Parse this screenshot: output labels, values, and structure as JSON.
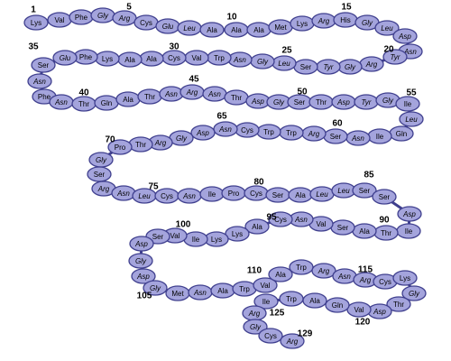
{
  "residues": [
    "Lys",
    "Val",
    "Phe",
    "Gly",
    "Arg",
    "Cys",
    "Glu",
    "Leu",
    "Ala",
    "Ala",
    "Ala",
    "Met",
    "Lys",
    "Arg",
    "His",
    "Gly",
    "Leu",
    "Asp",
    "Asn",
    "Tyr",
    "Arg",
    "Gly",
    "Tyr",
    "Ser",
    "Leu",
    "Gly",
    "Asn",
    "Trp",
    "Val",
    "Cys",
    "Ala",
    "Ala",
    "Lys",
    "Phe",
    "Glu",
    "Ser",
    "Asn",
    "Phe",
    "Asn",
    "Thr",
    "Gln",
    "Ala",
    "Thr",
    "Asn",
    "Arg",
    "Asn",
    "Thr",
    "Asp",
    "Gly",
    "Ser",
    "Thr",
    "Asp",
    "Tyr",
    "Gly",
    "Ile",
    "Leu",
    "Gln",
    "Ile",
    "Asn",
    "Ser",
    "Arg",
    "Trp",
    "Trp",
    "Cys",
    "Asn",
    "Asp",
    "Gly",
    "Arg",
    "Thr",
    "Pro",
    "Gly",
    "Ser",
    "Arg",
    "Asn",
    "Leu",
    "Cys",
    "Asn",
    "Ile",
    "Pro",
    "Cys",
    "Ser",
    "Ala",
    "Leu",
    "Leu",
    "Ser",
    "Ser",
    "Asp",
    "Ile",
    "Thr",
    "Ala",
    "Ser",
    "Val",
    "Asn",
    "Cys",
    "Ala",
    "Lys",
    "Lys",
    "Ile",
    "Val",
    "Ser",
    "Asp",
    "Gly",
    "Asp",
    "Gly",
    "Met",
    "Asn",
    "Ala",
    "Trp",
    "Val",
    "Ala",
    "Trp",
    "Arg",
    "Asn",
    "Arg",
    "Cys",
    "Lys",
    "Gly",
    "Thr",
    "Asp",
    "Val",
    "Gln",
    "Ala",
    "Trp",
    "Ile",
    "Arg",
    "Gly",
    "Cys",
    "Arg",
    "Leu"
  ],
  "position_labels": [
    "1",
    "5",
    "10",
    "15",
    "20",
    "25",
    "30",
    "35",
    "40",
    "45",
    "50",
    "55",
    "60",
    "65",
    "70",
    "75",
    "80",
    "85",
    "90",
    "95",
    "100",
    "105",
    "110",
    "115",
    "120",
    "125",
    "129"
  ],
  "colors": {
    "bead_fill": "#a4a4dc",
    "bead_stroke": "#3f3f8e",
    "link": "#3f3f8e"
  }
}
